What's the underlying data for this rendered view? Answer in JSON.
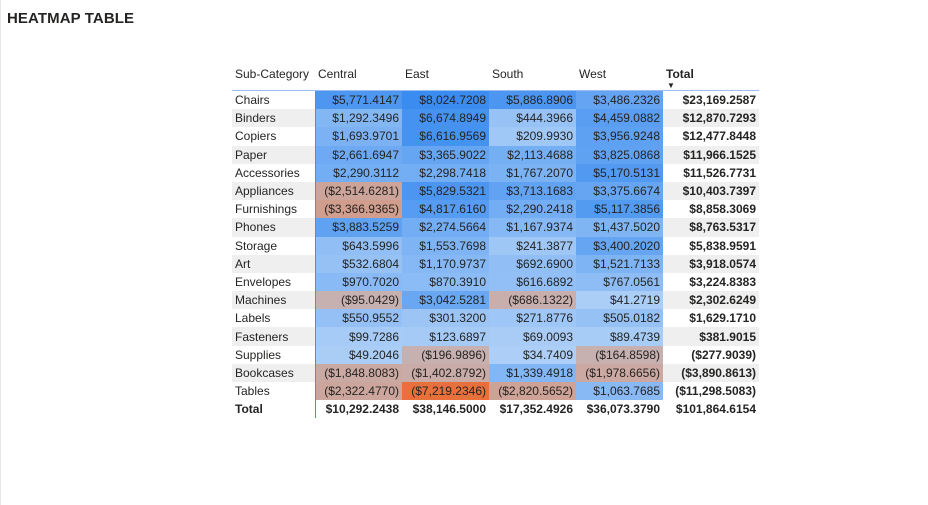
{
  "title": "HEATMAP TABLE",
  "chart_data": {
    "type": "heatmap",
    "title": "HEATMAP TABLE",
    "row_header": "Sub-Category",
    "columns": [
      "Central",
      "East",
      "South",
      "West"
    ],
    "total_label": "Total",
    "rows": [
      {
        "label": "Chairs",
        "values": [
          5771.4147,
          8024.7208,
          5886.8906,
          3486.2326
        ],
        "texts": [
          "$5,771.4147",
          "$8,024.7208",
          "$5,886.8906",
          "$3,486.2326"
        ],
        "total": "$23,169.2587"
      },
      {
        "label": "Binders",
        "values": [
          1292.3496,
          6674.8949,
          444.3966,
          4459.0882
        ],
        "texts": [
          "$1,292.3496",
          "$6,674.8949",
          "$444.3966",
          "$4,459.0882"
        ],
        "total": "$12,870.7293"
      },
      {
        "label": "Copiers",
        "values": [
          1693.9701,
          6616.9569,
          209.993,
          3956.9248
        ],
        "texts": [
          "$1,693.9701",
          "$6,616.9569",
          "$209.9930",
          "$3,956.9248"
        ],
        "total": "$12,477.8448"
      },
      {
        "label": "Paper",
        "values": [
          2661.6947,
          3365.9022,
          2113.4688,
          3825.0868
        ],
        "texts": [
          "$2,661.6947",
          "$3,365.9022",
          "$2,113.4688",
          "$3,825.0868"
        ],
        "total": "$11,966.1525"
      },
      {
        "label": "Accessories",
        "values": [
          2290.3112,
          2298.7418,
          1767.207,
          5170.5131
        ],
        "texts": [
          "$2,290.3112",
          "$2,298.7418",
          "$1,767.2070",
          "$5,170.5131"
        ],
        "total": "$11,526.7731"
      },
      {
        "label": "Appliances",
        "values": [
          -2514.6281,
          5829.5321,
          3713.1683,
          3375.6674
        ],
        "texts": [
          "($2,514.6281)",
          "$5,829.5321",
          "$3,713.1683",
          "$3,375.6674"
        ],
        "total": "$10,403.7397"
      },
      {
        "label": "Furnishings",
        "values": [
          -3366.9365,
          4817.616,
          2290.2418,
          5117.3856
        ],
        "texts": [
          "($3,366.9365)",
          "$4,817.6160",
          "$2,290.2418",
          "$5,117.3856"
        ],
        "total": "$8,858.3069"
      },
      {
        "label": "Phones",
        "values": [
          3883.5259,
          2274.5664,
          1167.9374,
          1437.502
        ],
        "texts": [
          "$3,883.5259",
          "$2,274.5664",
          "$1,167.9374",
          "$1,437.5020"
        ],
        "total": "$8,763.5317"
      },
      {
        "label": "Storage",
        "values": [
          643.5996,
          1553.7698,
          241.3877,
          3400.202
        ],
        "texts": [
          "$643.5996",
          "$1,553.7698",
          "$241.3877",
          "$3,400.2020"
        ],
        "total": "$5,838.9591"
      },
      {
        "label": "Art",
        "values": [
          532.6804,
          1170.9737,
          692.69,
          1521.7133
        ],
        "texts": [
          "$532.6804",
          "$1,170.9737",
          "$692.6900",
          "$1,521.7133"
        ],
        "total": "$3,918.0574"
      },
      {
        "label": "Envelopes",
        "values": [
          970.702,
          870.391,
          616.6892,
          767.0561
        ],
        "texts": [
          "$970.7020",
          "$870.3910",
          "$616.6892",
          "$767.0561"
        ],
        "total": "$3,224.8383"
      },
      {
        "label": "Machines",
        "values": [
          -95.0429,
          3042.5281,
          -686.1322,
          41.2719
        ],
        "texts": [
          "($95.0429)",
          "$3,042.5281",
          "($686.1322)",
          "$41.2719"
        ],
        "total": "$2,302.6249"
      },
      {
        "label": "Labels",
        "values": [
          550.9552,
          301.32,
          271.8776,
          505.0182
        ],
        "texts": [
          "$550.9552",
          "$301.3200",
          "$271.8776",
          "$505.0182"
        ],
        "total": "$1,629.1710"
      },
      {
        "label": "Fasteners",
        "values": [
          99.7286,
          123.6897,
          69.0093,
          89.4739
        ],
        "texts": [
          "$99.7286",
          "$123.6897",
          "$69.0093",
          "$89.4739"
        ],
        "total": "$381.9015"
      },
      {
        "label": "Supplies",
        "values": [
          49.2046,
          -196.9896,
          34.7409,
          -164.8598
        ],
        "texts": [
          "$49.2046",
          "($196.9896)",
          "$34.7409",
          "($164.8598)"
        ],
        "total": "($277.9039)"
      },
      {
        "label": "Bookcases",
        "values": [
          -1848.8083,
          -1402.8792,
          1339.4918,
          -1978.6656
        ],
        "texts": [
          "($1,848.8083)",
          "($1,402.8792)",
          "$1,339.4918",
          "($1,978.6656)"
        ],
        "total": "($3,890.8613)"
      },
      {
        "label": "Tables",
        "values": [
          -2322.477,
          -7219.2346,
          -2820.5652,
          1063.7685
        ],
        "texts": [
          "($2,322.4770)",
          "($7,219.2346)",
          "($2,820.5652)",
          "$1,063.7685"
        ],
        "total": "($11,298.5083)"
      }
    ],
    "column_totals": [
      "$10,292.2438",
      "$38,146.5000",
      "$17,352.4926",
      "$36,073.3790"
    ],
    "grand_total": "$101,864.6154",
    "color_scale": {
      "positive_high": "#3a8cf0",
      "positive_low": "#b4d3f7",
      "negative_low": "#c7b0b0",
      "negative_high": "#e8703a"
    }
  }
}
